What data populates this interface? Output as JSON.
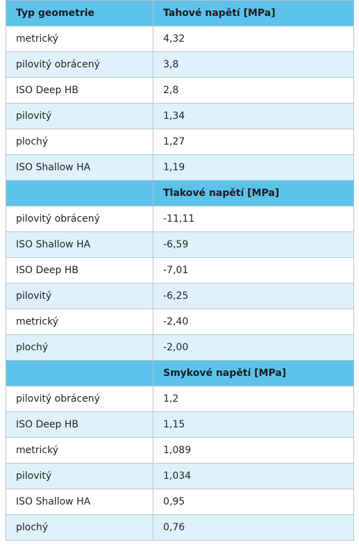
{
  "table": {
    "sections": [
      {
        "columns": [
          "Typ geometrie",
          "Tahové napětí [MPa]"
        ],
        "rows": [
          [
            "metrický",
            "4,32"
          ],
          [
            "pilovitý obrácený",
            "3,8"
          ],
          [
            "ISO Deep HB",
            "2,8"
          ],
          [
            "pilovitý",
            "1,34"
          ],
          [
            "plochý",
            "1,27"
          ],
          [
            "ISO Shallow HA",
            "1,19"
          ]
        ]
      },
      {
        "title": "Tlakové napětí [MPa]",
        "rows": [
          [
            "pilovitý obrácený",
            "-11,11"
          ],
          [
            "ISO Shallow HA",
            "-6,59"
          ],
          [
            "ISO Deep HB",
            "-7,01"
          ],
          [
            "pilovitý",
            "-6,25"
          ],
          [
            "metrický",
            "-2,40"
          ],
          [
            "plochý",
            "-2,00"
          ]
        ]
      },
      {
        "title": "Smykové napětí [MPa]",
        "rows": [
          [
            "pilovitý obrácený",
            "1,2"
          ],
          [
            "ISO Deep HB",
            "1,15"
          ],
          [
            "metrický",
            "1,089"
          ],
          [
            "pilovitý",
            "1,034"
          ],
          [
            "ISO Shallow HA",
            "0,95"
          ],
          [
            "plochý",
            "0,76"
          ]
        ]
      }
    ]
  }
}
